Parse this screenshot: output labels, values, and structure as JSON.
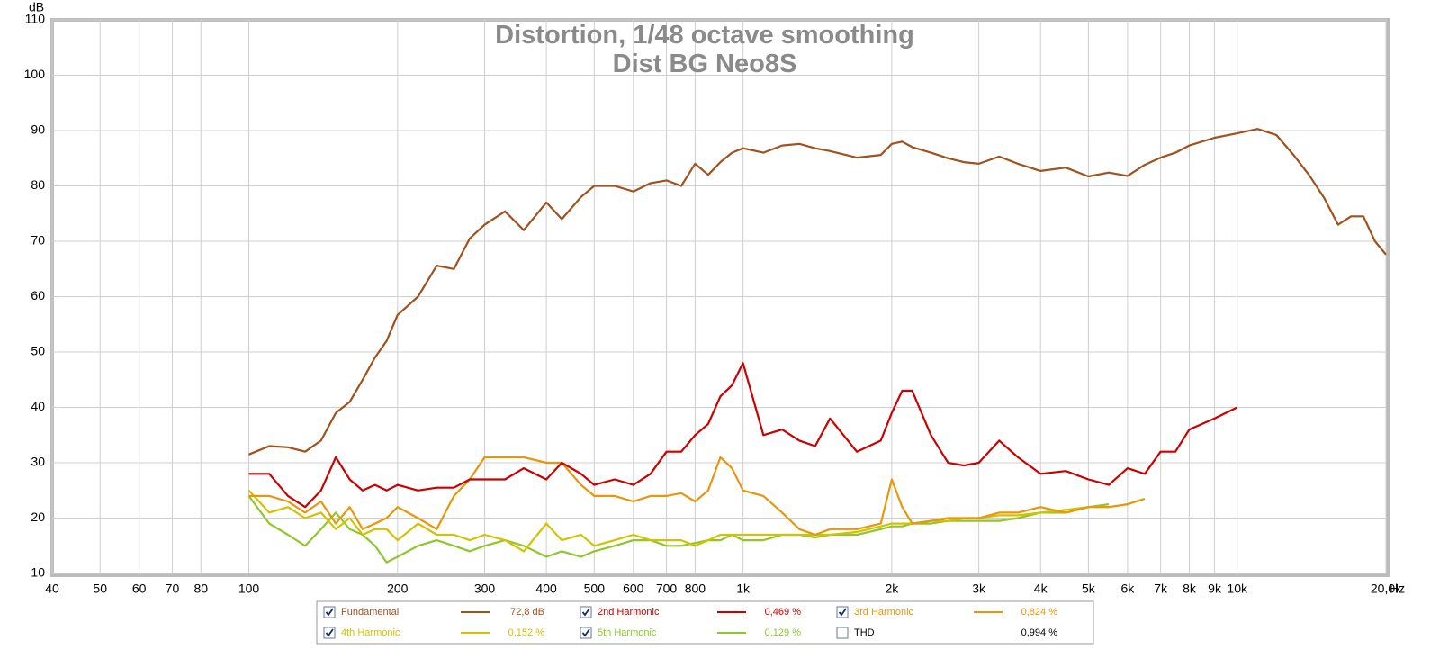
{
  "chart_data": {
    "type": "line",
    "title": "Distortion, 1/48 octave smoothing",
    "subtitle": "Dist BG Neo8S",
    "x_label": "Hz",
    "y_label": "dB",
    "xscale": "log",
    "grid": true,
    "xlim": [
      40,
      20000
    ],
    "ylim": [
      10,
      110
    ],
    "xticks": [
      40,
      50,
      60,
      70,
      80,
      100,
      200,
      300,
      400,
      500,
      600,
      700,
      800,
      {
        "value": 1000,
        "label": "1k"
      },
      {
        "value": 2000,
        "label": "2k"
      },
      {
        "value": 3000,
        "label": "3k"
      },
      {
        "value": 4000,
        "label": "4k"
      },
      {
        "value": 5000,
        "label": "5k"
      },
      {
        "value": 6000,
        "label": "6k"
      },
      {
        "value": 7000,
        "label": "7k"
      },
      {
        "value": 8000,
        "label": "8k"
      },
      {
        "value": 9000,
        "label": "9k"
      },
      {
        "value": 10000,
        "label": "10k"
      },
      {
        "value": 20000,
        "label": "20,0k"
      }
    ],
    "yticks": [
      10,
      20,
      30,
      40,
      50,
      60,
      70,
      80,
      90,
      100,
      110
    ],
    "x": [
      100,
      110,
      120,
      130,
      140,
      150,
      160,
      170,
      180,
      190,
      200,
      220,
      240,
      260,
      280,
      300,
      330,
      360,
      400,
      430,
      470,
      500,
      550,
      600,
      650,
      700,
      750,
      800,
      850,
      900,
      950,
      1000,
      1100,
      1200,
      1300,
      1400,
      1500,
      1700,
      1900,
      2000,
      2100,
      2200,
      2400,
      2600,
      2800,
      3000,
      3300,
      3600,
      4000,
      4500,
      5000,
      5500,
      6000,
      6500,
      7000,
      7500,
      8000,
      9000,
      10000,
      11000,
      12000,
      13000,
      14000,
      15000,
      16000,
      17000,
      18000,
      19000,
      20000
    ],
    "series": [
      {
        "name": "Fundamental",
        "color": "#a0521e",
        "readout": "72,8 dB",
        "checked": true,
        "values": [
          31.5,
          33,
          32.8,
          32,
          34,
          39,
          41,
          45,
          49,
          52,
          56.7,
          60,
          65.6,
          65,
          70.5,
          73,
          75.4,
          72,
          77,
          74,
          78,
          80,
          80,
          79,
          80.5,
          81,
          80,
          84,
          82,
          84.3,
          86,
          86.8,
          86,
          87.3,
          87.6,
          86.8,
          86.3,
          85.1,
          85.6,
          87.6,
          88,
          87,
          86,
          85,
          84.3,
          84,
          85.3,
          84,
          82.7,
          83.3,
          81.7,
          82.4,
          81.8,
          83.8,
          85.1,
          86,
          87.3,
          88.7,
          89.5,
          90.3,
          89.2,
          85.6,
          81.9,
          77.8,
          73,
          74.5,
          74.5,
          70,
          67.6
        ]
      },
      {
        "name": "2nd Harmonic",
        "color": "#cc0000",
        "readout": "0,469 %",
        "checked": true,
        "values": [
          28,
          28,
          24,
          22,
          25,
          31,
          27,
          25,
          26,
          25,
          26,
          25,
          25.5,
          25.5,
          27,
          27,
          27,
          29,
          27,
          30,
          28,
          26,
          27,
          26,
          28,
          32,
          32,
          35,
          37,
          42,
          44,
          48,
          35,
          36,
          34,
          33,
          38,
          32,
          34,
          39,
          43,
          43,
          35,
          30,
          29.5,
          30,
          34,
          31,
          28,
          28.5,
          27,
          26,
          29,
          28,
          32,
          32,
          36,
          38,
          40,
          null,
          null,
          null,
          null,
          null,
          null,
          null,
          null,
          null,
          null
        ]
      },
      {
        "name": "3rd Harmonic",
        "color": "#e8960a",
        "readout": "0,824 %",
        "checked": true,
        "values": [
          24,
          24,
          23,
          21,
          23,
          19,
          22,
          18,
          19,
          20,
          22,
          20,
          18,
          24,
          27,
          31,
          31,
          31,
          30,
          30,
          26,
          24,
          24,
          23,
          24,
          24,
          24.5,
          23,
          25,
          31,
          29,
          25,
          24,
          21,
          18,
          17,
          18,
          18,
          19,
          27,
          22,
          19,
          19.5,
          20,
          20,
          20,
          21,
          21,
          22,
          21,
          22,
          22,
          22.5,
          23.5,
          null,
          null,
          null,
          null,
          null,
          null,
          null,
          null,
          null,
          null,
          null,
          null,
          null,
          null,
          null
        ]
      },
      {
        "name": "4th Harmonic",
        "color": "#d2c200",
        "readout": "0,152 %",
        "checked": true,
        "values": [
          25,
          21,
          22,
          20,
          21,
          18,
          20,
          17,
          18,
          18,
          16,
          19,
          17,
          17,
          16,
          17,
          16,
          14,
          19,
          16,
          17,
          15,
          16,
          17,
          16,
          16,
          16,
          15,
          16,
          17,
          17,
          17,
          17,
          17,
          17,
          17,
          17,
          17.5,
          18.5,
          19,
          19,
          19,
          19.5,
          19.5,
          20,
          20,
          20.5,
          20.5,
          21,
          21.5,
          22,
          22,
          null,
          null,
          null,
          null,
          null,
          null,
          null,
          null,
          null,
          null,
          null,
          null,
          null,
          null,
          null,
          null,
          null
        ]
      },
      {
        "name": "5th Harmonic",
        "color": "#8fc72a",
        "readout": "0,129 %",
        "checked": true,
        "values": [
          24,
          19,
          17,
          15,
          18,
          21,
          18,
          17,
          15,
          12,
          13,
          15,
          16,
          15,
          14,
          15,
          16,
          15,
          13,
          14,
          13,
          14,
          15,
          16,
          16,
          15,
          15,
          15.5,
          16,
          16,
          17,
          16,
          16,
          17,
          17,
          16.5,
          17,
          17,
          18,
          18.5,
          18.5,
          19,
          19,
          19.5,
          19.5,
          19.5,
          19.5,
          20,
          21,
          21,
          22,
          22.5,
          null,
          null,
          null,
          null,
          null,
          null,
          null,
          null,
          null,
          null,
          null,
          null,
          null,
          null,
          null,
          null,
          null
        ]
      }
    ],
    "thd": {
      "name": "THD",
      "readout": "0,994 %",
      "checked": false
    }
  }
}
